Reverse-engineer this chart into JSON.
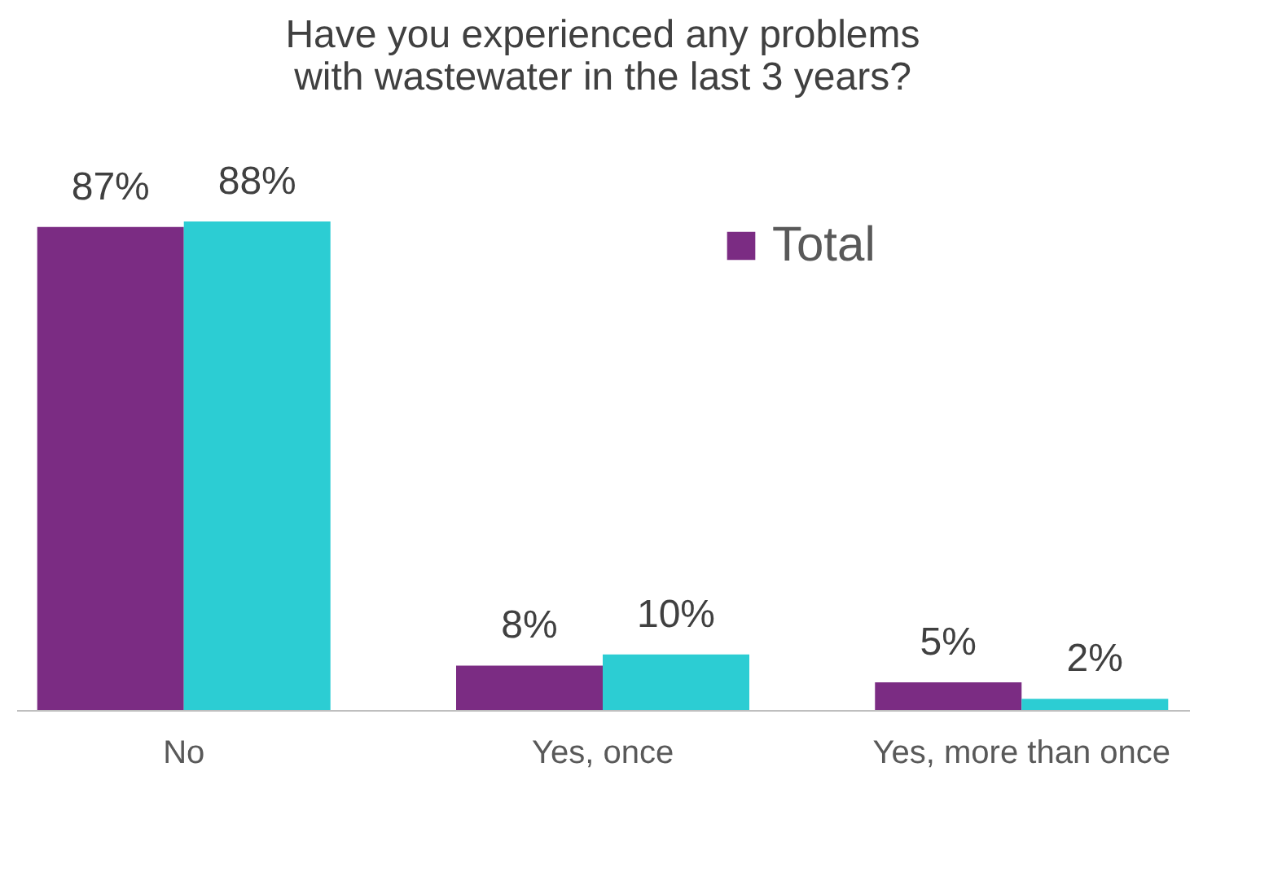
{
  "chart_data": {
    "type": "bar",
    "title": "Have you experienced any problems with wastewater in the last 3 years?",
    "categories": [
      "No",
      "Yes, once",
      "Yes, more than once"
    ],
    "series": [
      {
        "name": "Total",
        "color": "#7b2c83",
        "values": [
          87,
          8,
          5
        ],
        "value_labels": [
          "87%",
          "8%",
          "5%"
        ]
      },
      {
        "color": "#2ccdd3",
        "values": [
          88,
          10,
          2
        ],
        "value_labels": [
          "88%",
          "10%",
          "2%"
        ]
      }
    ],
    "legend": "top right",
    "grid": false
  }
}
